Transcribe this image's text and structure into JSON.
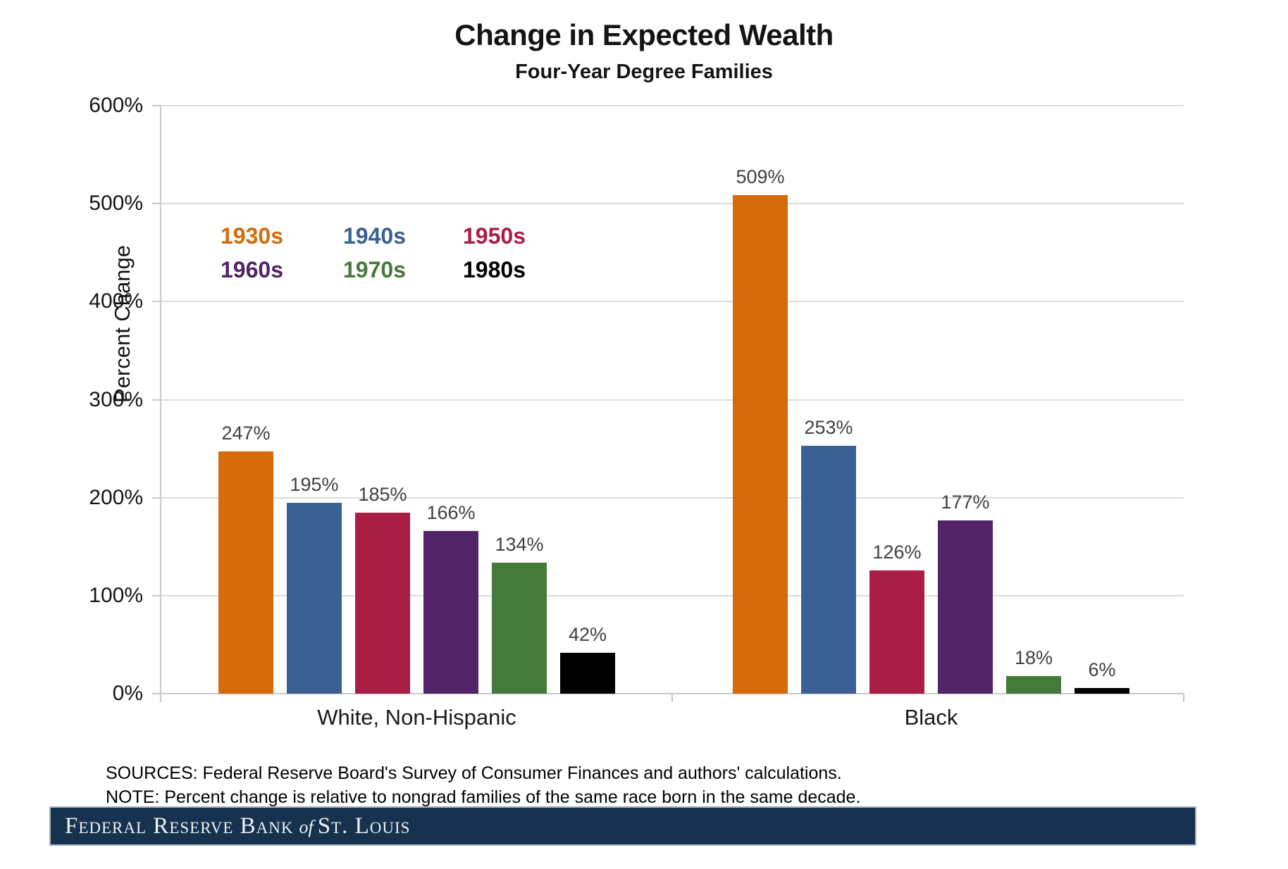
{
  "title": "Change in Expected Wealth",
  "subtitle": "Four-Year Degree Families",
  "chart_data": {
    "type": "bar",
    "title": "Change in Expected Wealth",
    "subtitle": "Four-Year Degree Families",
    "ylabel": "Percent Change",
    "ylim": [
      0,
      600
    ],
    "yticks": [
      0,
      100,
      200,
      300,
      400,
      500,
      600
    ],
    "ytick_suffix": "%",
    "grid": true,
    "legend_position": "inside-top-left",
    "legend_layout": "2-rows-3-columns",
    "categories": [
      "White, Non-Hispanic",
      "Black"
    ],
    "series": [
      {
        "name": "1930s",
        "color": "#D56B0A",
        "values": [
          247,
          509
        ]
      },
      {
        "name": "1940s",
        "color": "#3A6191",
        "values": [
          195,
          253
        ]
      },
      {
        "name": "1950s",
        "color": "#A91E45",
        "values": [
          185,
          126
        ]
      },
      {
        "name": "1960s",
        "color": "#522366",
        "values": [
          166,
          177
        ]
      },
      {
        "name": "1970s",
        "color": "#447B3B",
        "values": [
          134,
          18
        ]
      },
      {
        "name": "1980s",
        "color": "#000000",
        "values": [
          42,
          6
        ]
      }
    ],
    "data_label_suffix": "%"
  },
  "footer": {
    "sources": "SOURCES: Federal Reserve Board's Survey of Consumer Finances and authors' calculations.",
    "note": "NOTE: Percent change is relative to nongrad families of the same race born in the same decade."
  },
  "banner": {
    "text_main_1": "Federal Reserve Bank",
    "text_of": "of",
    "text_main_2": "St. Louis",
    "bg_color": "#16324F"
  }
}
